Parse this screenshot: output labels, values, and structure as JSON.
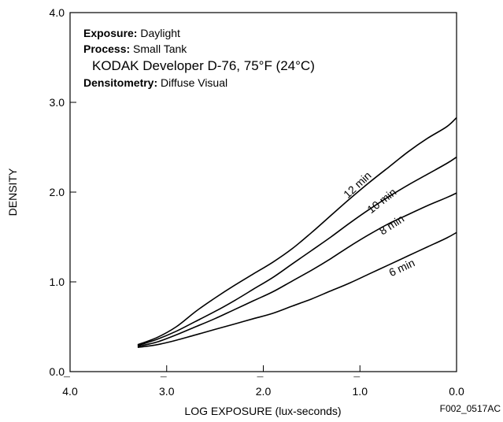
{
  "chart_data": {
    "type": "line",
    "xlabel": "LOG EXPOSURE (lux-seconds)",
    "ylabel": "DENSITY",
    "xlim": [
      -4.0,
      0.0
    ],
    "ylim": [
      0.0,
      4.0
    ],
    "grid": false,
    "x_ticks": [
      {
        "value": -4.0,
        "bar": "¯",
        "num": "4.0"
      },
      {
        "value": -3.0,
        "bar": "¯",
        "num": "3.0"
      },
      {
        "value": -2.0,
        "bar": "¯",
        "num": "2.0"
      },
      {
        "value": -1.0,
        "bar": "¯",
        "num": "1.0"
      },
      {
        "value": 0.0,
        "bar": "",
        "num": "0.0"
      }
    ],
    "y_ticks": [
      {
        "value": 0.0,
        "label": "0.0"
      },
      {
        "value": 1.0,
        "label": "1.0"
      },
      {
        "value": 2.0,
        "label": "2.0"
      },
      {
        "value": 3.0,
        "label": "3.0"
      },
      {
        "value": 4.0,
        "label": "4.0"
      }
    ],
    "annotations": [
      {
        "bold": "Exposure:",
        "text": " Daylight"
      },
      {
        "bold": "Process:",
        "text": " Small Tank"
      },
      {
        "bold": "",
        "text": "KODAK Developer D-76,  75°F (24°C)"
      },
      {
        "bold": "Densitometry:",
        "text": " Diffuse Visual"
      }
    ],
    "series": [
      {
        "name": "12 min",
        "x": [
          -3.3,
          -3.1,
          -2.9,
          -2.7,
          -2.5,
          -2.3,
          -2.1,
          -1.9,
          -1.7,
          -1.5,
          -1.3,
          -1.1,
          -0.9,
          -0.7,
          -0.5,
          -0.3,
          -0.1,
          0.0
        ],
        "y": [
          0.3,
          0.38,
          0.5,
          0.67,
          0.82,
          0.96,
          1.09,
          1.22,
          1.37,
          1.55,
          1.74,
          1.93,
          2.11,
          2.28,
          2.45,
          2.6,
          2.73,
          2.83
        ]
      },
      {
        "name": "10 min",
        "x": [
          -3.3,
          -3.1,
          -2.9,
          -2.7,
          -2.5,
          -2.3,
          -2.1,
          -1.9,
          -1.7,
          -1.5,
          -1.3,
          -1.1,
          -0.9,
          -0.7,
          -0.5,
          -0.3,
          -0.1,
          0.0
        ],
        "y": [
          0.29,
          0.36,
          0.45,
          0.56,
          0.67,
          0.79,
          0.92,
          1.05,
          1.2,
          1.35,
          1.5,
          1.66,
          1.81,
          1.95,
          2.08,
          2.2,
          2.32,
          2.39
        ]
      },
      {
        "name": "8 min",
        "x": [
          -3.3,
          -3.1,
          -2.9,
          -2.7,
          -2.5,
          -2.3,
          -2.1,
          -1.9,
          -1.7,
          -1.5,
          -1.3,
          -1.1,
          -0.9,
          -0.7,
          -0.5,
          -0.3,
          -0.1,
          0.0
        ],
        "y": [
          0.28,
          0.33,
          0.41,
          0.5,
          0.59,
          0.69,
          0.79,
          0.89,
          1.01,
          1.13,
          1.26,
          1.4,
          1.53,
          1.65,
          1.75,
          1.85,
          1.94,
          1.99
        ]
      },
      {
        "name": "6 min",
        "x": [
          -3.3,
          -3.1,
          -2.9,
          -2.7,
          -2.5,
          -2.3,
          -2.1,
          -1.9,
          -1.7,
          -1.5,
          -1.3,
          -1.1,
          -0.9,
          -0.7,
          -0.5,
          -0.3,
          -0.1,
          0.0
        ],
        "y": [
          0.27,
          0.3,
          0.35,
          0.41,
          0.47,
          0.53,
          0.59,
          0.65,
          0.73,
          0.81,
          0.9,
          0.99,
          1.09,
          1.19,
          1.29,
          1.39,
          1.49,
          1.55
        ]
      }
    ],
    "curve_labels": [
      {
        "text": "12 min",
        "x": -1.0,
        "y": 2.05,
        "angle": -43
      },
      {
        "text": "10 min",
        "x": -0.75,
        "y": 1.87,
        "angle": -38
      },
      {
        "text": "8 min",
        "x": -0.65,
        "y": 1.6,
        "angle": -33
      },
      {
        "text": "6 min",
        "x": -0.55,
        "y": 1.12,
        "angle": -25
      }
    ],
    "figure_id": "F002_0517AC"
  }
}
